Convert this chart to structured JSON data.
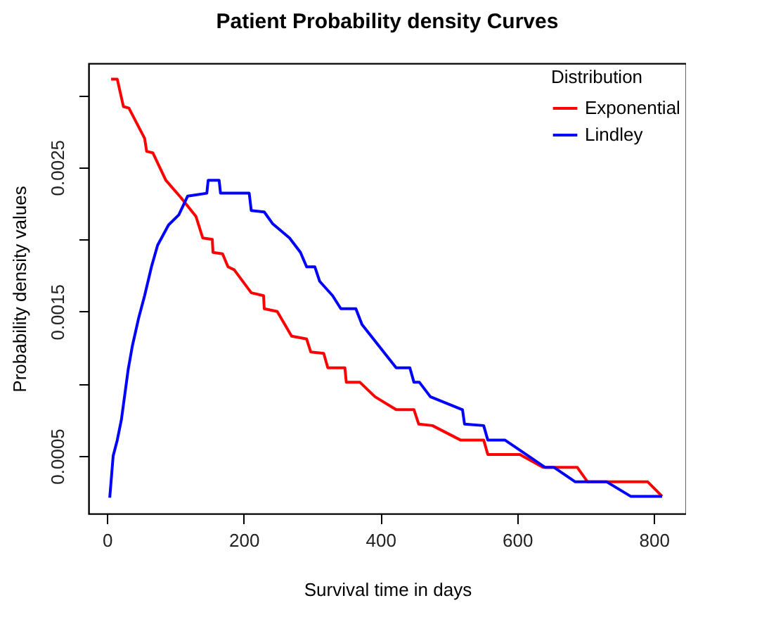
{
  "chart_data": {
    "type": "line",
    "title": "Patient Probability density Curves",
    "xlabel": "Survival time in days",
    "ylabel": "Probability density values",
    "legend_title": "Distribution",
    "legend": "top right",
    "grid": false,
    "xlim": [
      -27,
      847
    ],
    "ylim": [
      0.0001,
      0.00322
    ],
    "xticks": [
      0,
      200,
      400,
      600,
      800
    ],
    "yticks": [
      0.0005,
      {
        "value": 0.001,
        "label": null
      },
      0.0015,
      {
        "value": 0.002,
        "label": null
      },
      0.0025,
      {
        "value": 0.003,
        "label": null
      }
    ],
    "series": [
      {
        "name": "Exponential",
        "color": "#ff0000",
        "x": [
          6,
          15,
          24,
          32,
          55,
          58,
          67,
          86,
          108,
          130,
          140,
          154,
          155,
          169,
          177,
          186,
          211,
          229,
          230,
          249,
          270,
          292,
          298,
          317,
          323,
          348,
          350,
          370,
          392,
          423,
          449,
          456,
          476,
          517,
          551,
          557,
          604,
          638,
          688,
          703,
          791,
          812
        ],
        "values": [
          0.00311,
          0.00311,
          0.00292,
          0.00291,
          0.0027,
          0.00261,
          0.0026,
          0.00241,
          0.00229,
          0.00216,
          0.00201,
          0.002,
          0.00191,
          0.0019,
          0.00181,
          0.00179,
          0.00163,
          0.00161,
          0.00152,
          0.0015,
          0.00133,
          0.00131,
          0.00122,
          0.00121,
          0.00111,
          0.00111,
          0.00101,
          0.00101,
          0.00091,
          0.00082,
          0.00082,
          0.00072,
          0.00071,
          0.00061,
          0.00061,
          0.00051,
          0.00051,
          0.00042,
          0.00042,
          0.00032,
          0.00032,
          0.00022
        ]
      },
      {
        "name": "Lindley",
        "color": "#0000ff",
        "x": [
          4,
          9,
          15,
          21,
          31,
          37,
          46,
          55,
          65,
          74,
          90,
          105,
          118,
          146,
          148,
          164,
          166,
          208,
          211,
          230,
          242,
          267,
          283,
          292,
          304,
          311,
          330,
          342,
          364,
          373,
          398,
          423,
          443,
          449,
          457,
          473,
          520,
          523,
          551,
          557,
          582,
          641,
          654,
          685,
          731,
          766,
          812
        ],
        "values": [
          0.00021,
          0.0005,
          0.00061,
          0.00075,
          0.0011,
          0.00126,
          0.00145,
          0.00161,
          0.00181,
          0.00196,
          0.0021,
          0.00217,
          0.0023,
          0.00232,
          0.00241,
          0.00241,
          0.00232,
          0.00232,
          0.0022,
          0.00219,
          0.00211,
          0.00201,
          0.00191,
          0.00181,
          0.00181,
          0.00171,
          0.00161,
          0.00152,
          0.00152,
          0.00141,
          0.00126,
          0.00111,
          0.00111,
          0.00101,
          0.00101,
          0.00091,
          0.00082,
          0.00072,
          0.00071,
          0.00061,
          0.00061,
          0.00042,
          0.00042,
          0.00032,
          0.00032,
          0.00022,
          0.00022
        ]
      }
    ]
  }
}
